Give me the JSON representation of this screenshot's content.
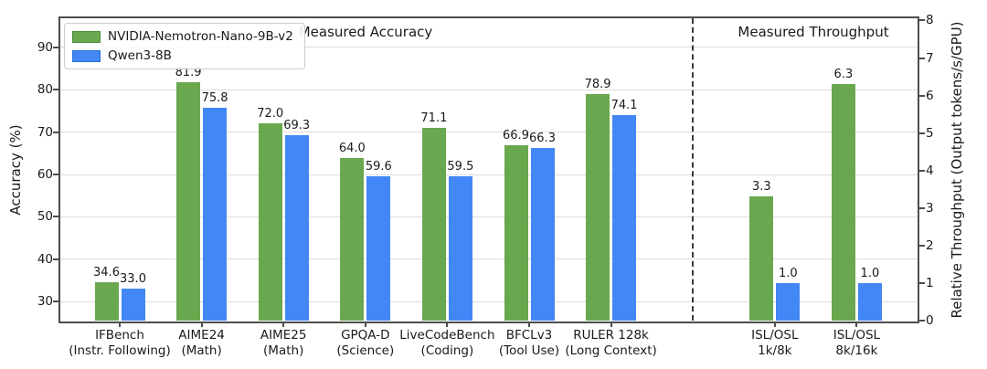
{
  "chart_data": {
    "type": "bar",
    "panel_titles": {
      "accuracy": "Measured Accuracy",
      "throughput": "Measured Throughput"
    },
    "left_axis": {
      "label": "Accuracy (%)",
      "ticks": [
        30,
        40,
        50,
        60,
        70,
        80,
        90
      ],
      "min": 25.5,
      "max": 96.9,
      "grid": true
    },
    "right_axis": {
      "label": "Relative Throughput (Output tokens/s/GPU)",
      "ticks": [
        0,
        1,
        2,
        3,
        4,
        5,
        6,
        7,
        8
      ],
      "min": 0,
      "max": 8.06,
      "grid": false
    },
    "legend_position": "top-left",
    "series": [
      {
        "name": "NVIDIA-Nemotron-Nano-9B-v2",
        "color": "#6aa84f",
        "edge": "#4e8a3a"
      },
      {
        "name": "Qwen3-8B",
        "color": "#4287f5",
        "edge": "#2a6fd8"
      }
    ],
    "groups": [
      {
        "axis": "left",
        "label_line1": "IFBench",
        "label_line2": "(Instr. Following)",
        "values": [
          34.6,
          33.0
        ]
      },
      {
        "axis": "left",
        "label_line1": "AIME24",
        "label_line2": "(Math)",
        "values": [
          81.9,
          75.8
        ]
      },
      {
        "axis": "left",
        "label_line1": "AIME25",
        "label_line2": "(Math)",
        "values": [
          72.0,
          69.3
        ]
      },
      {
        "axis": "left",
        "label_line1": "GPQA-D",
        "label_line2": "(Science)",
        "values": [
          64.0,
          59.6
        ]
      },
      {
        "axis": "left",
        "label_line1": "LiveCodeBench",
        "label_line2": "(Coding)",
        "values": [
          71.1,
          59.5
        ]
      },
      {
        "axis": "left",
        "label_line1": "BFCLv3",
        "label_line2": "(Tool Use)",
        "values": [
          66.9,
          66.3
        ]
      },
      {
        "axis": "left",
        "label_line1": "RULER 128k",
        "label_line2": "(Long Context)",
        "values": [
          78.9,
          74.1
        ]
      },
      {
        "axis": "right",
        "label_line1": "ISL/OSL",
        "label_line2": "1k/8k",
        "values": [
          3.3,
          1.0
        ]
      },
      {
        "axis": "right",
        "label_line1": "ISL/OSL",
        "label_line2": "8k/16k",
        "values": [
          6.3,
          1.0
        ]
      }
    ],
    "divider_after_group_index": 6
  }
}
